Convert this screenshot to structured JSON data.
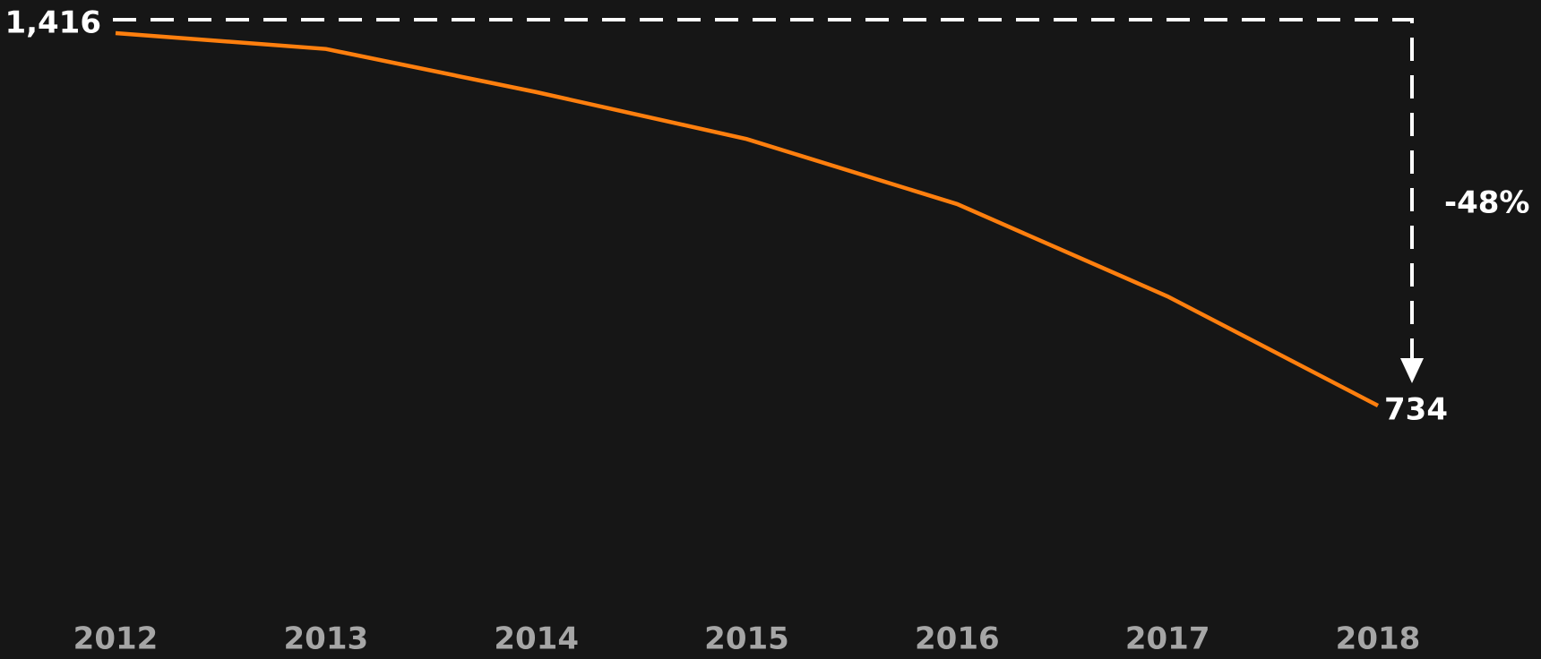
{
  "chart_data": {
    "type": "line",
    "categories": [
      "2012",
      "2013",
      "2014",
      "2015",
      "2016",
      "2017",
      "2018"
    ],
    "series": [
      {
        "color": "#ff7f0e",
        "values": [
          1416,
          1387,
          1308,
          1222,
          1103,
          934,
          734
        ],
        "value_labels": [
          "1,416",
          null,
          null,
          null,
          null,
          null,
          "734"
        ]
      }
    ],
    "annotation": "-48%"
  }
}
